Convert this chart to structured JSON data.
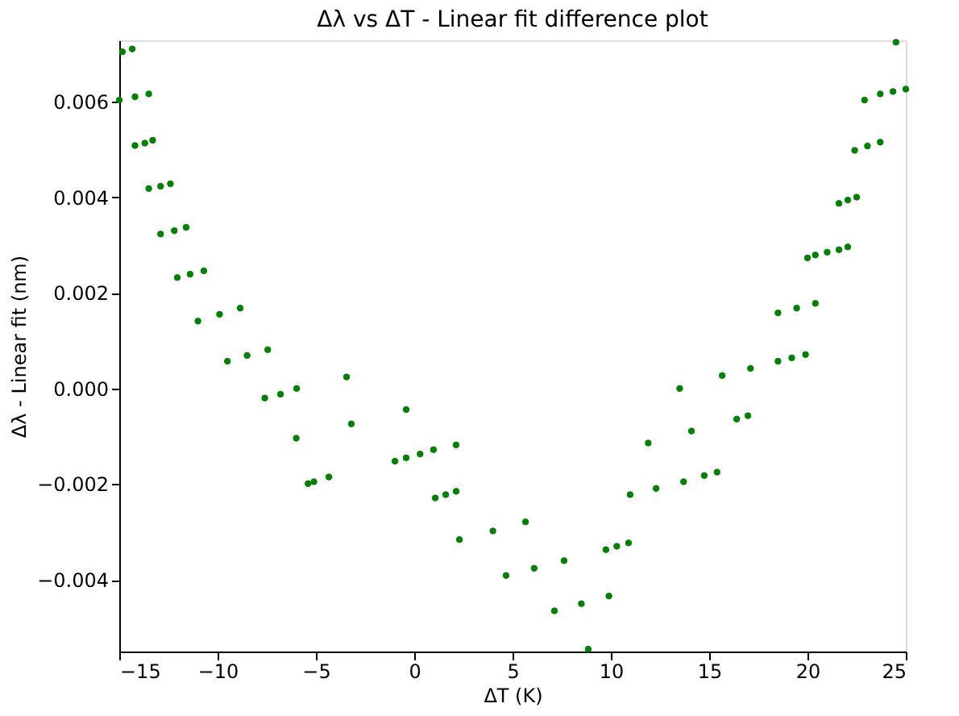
{
  "chart_data": {
    "type": "scatter",
    "title": "Δλ vs ΔT - Linear fit difference plot",
    "xlabel": "ΔT (K)",
    "ylabel": "Δλ - Linear fit (nm)",
    "x": [
      -14.84,
      -14.34,
      -15.0,
      -14.2,
      -13.5,
      -14.2,
      -13.7,
      -13.3,
      -13.5,
      -12.9,
      -12.4,
      -12.9,
      -12.2,
      -11.6,
      -12.05,
      -11.4,
      -10.7,
      -11.0,
      -9.9,
      -8.85,
      -9.5,
      -8.5,
      -7.45,
      -3.44,
      -7.6,
      -6.8,
      -5.98,
      -6.0,
      -3.2,
      -0.41,
      -5.4,
      -5.1,
      -4.34,
      -0.98,
      -0.41,
      0.3,
      0.98,
      2.13,
      1.07,
      1.6,
      2.13,
      2.3,
      4.0,
      5.66,
      4.67,
      6.1,
      7.62,
      7.13,
      8.5,
      9.9,
      8.85,
      9.75,
      10.3,
      10.9,
      10.98,
      12.3,
      13.7,
      14.75,
      15.4,
      11.9,
      14.1,
      16.4,
      16.97,
      13.5,
      15.66,
      17.1,
      18.5,
      19.2,
      19.9,
      18.5,
      19.45,
      20.4,
      20.0,
      20.4,
      21.0,
      21.6,
      22.05,
      21.6,
      22.05,
      22.5,
      22.4,
      23.05,
      23.7,
      22.9,
      23.7,
      24.35,
      25.0,
      24.5
    ],
    "values": [
      0.00704,
      0.0071,
      0.00603,
      0.0061,
      0.00616,
      0.00508,
      0.00513,
      0.00519,
      0.00418,
      0.00423,
      0.00428,
      0.00323,
      0.0033,
      0.00337,
      0.00232,
      0.00239,
      0.00246,
      0.00141,
      0.00155,
      0.00168,
      0.00057,
      0.00069,
      0.00081,
      0.00024,
      -0.0002,
      -0.00012,
      0,
      -0.00104,
      -0.00074,
      -0.00044,
      -0.00199,
      -0.00195,
      -0.00185,
      -0.00152,
      -0.00145,
      -0.00137,
      -0.00128,
      -0.00118,
      -0.00229,
      -0.00222,
      -0.00215,
      -0.00316,
      -0.00298,
      -0.00279,
      -0.00391,
      -0.00376,
      -0.0036,
      -0.00465,
      -0.0045,
      -0.00434,
      -0.00545,
      -0.00337,
      -0.0033,
      -0.00323,
      -0.00222,
      -0.00209,
      -0.00195,
      -0.00182,
      -0.00175,
      -0.00114,
      -0.00089,
      -0.00064,
      -0.00057,
      0,
      0.00027,
      0.00042,
      0.00057,
      0.00064,
      0.00071,
      0.00158,
      0.00168,
      0.00178,
      0.00273,
      0.00279,
      0.00285,
      0.0029,
      0.00296,
      0.00387,
      0.00394,
      0.004,
      0.00498,
      0.00507,
      0.00515,
      0.00603,
      0.00616,
      0.00621,
      0.00626,
      0.00724
    ],
    "color": "#008000",
    "marker": "circle",
    "grid": false,
    "xlim": [
      -15,
      25
    ],
    "xticks": [
      {
        "value": -15,
        "label": "−15"
      },
      {
        "value": -10,
        "label": "−10"
      },
      {
        "value": -5,
        "label": "−5"
      },
      0,
      5,
      10,
      15,
      20,
      25
    ],
    "ylim": [
      -0.0055,
      0.00728
    ],
    "yticks": [
      {
        "value": -0.004,
        "label": "−0.004"
      },
      {
        "value": -0.002,
        "label": "−0.002"
      },
      {
        "value": 0,
        "label": "0.000"
      },
      {
        "value": 0.002,
        "label": "0.002"
      },
      {
        "value": 0.004,
        "label": "0.004"
      },
      {
        "value": 0.006,
        "label": "0.006"
      }
    ]
  }
}
